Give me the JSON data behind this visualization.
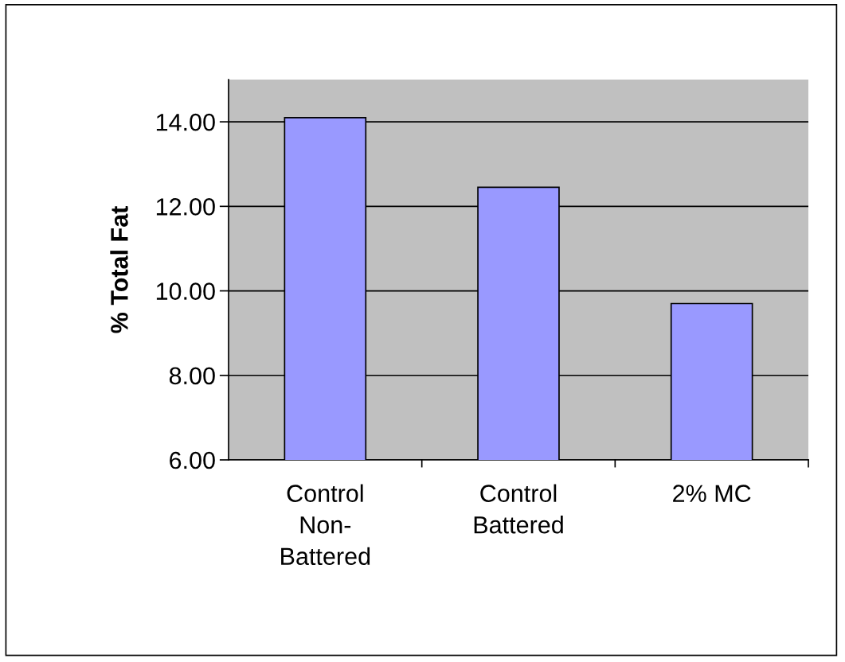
{
  "chart_data": {
    "type": "bar",
    "ylabel": "% Total Fat",
    "categories": [
      "Control\nNon-\nBattered",
      "Control\nBattered",
      "2% MC"
    ],
    "values": [
      14.1,
      12.45,
      9.7
    ],
    "color": "#9999ff",
    "ylim": [
      6,
      15
    ],
    "yticks": [
      {
        "value": 6,
        "label": "6.00"
      },
      {
        "value": 8,
        "label": "8.00"
      },
      {
        "value": 10,
        "label": "10.00"
      },
      {
        "value": 12,
        "label": "12.00"
      },
      {
        "value": 14,
        "label": "14.00"
      }
    ],
    "grid": "y",
    "legend": false
  }
}
